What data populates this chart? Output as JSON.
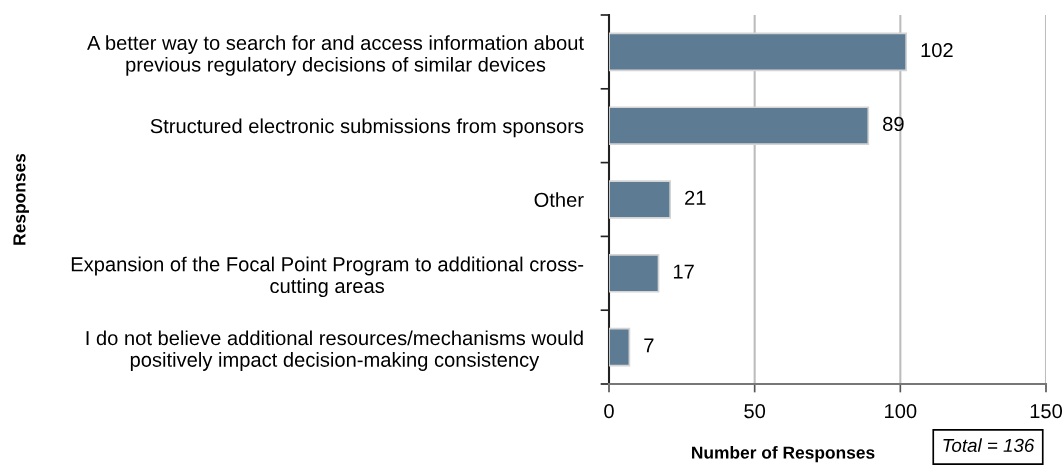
{
  "chart_data": {
    "type": "bar",
    "orientation": "horizontal",
    "xlabel": "Number of Responses",
    "ylabel": "Responses",
    "categories": [
      "A better way to search for and access information about\nprevious regulatory decisions of similar devices",
      "Structured electronic submissions from sponsors",
      "Other",
      "Expansion of the Focal Point Program to additional cross-\ncutting areas",
      "I do not believe additional resources/mechanisms would\npositively impact decision-making consistency"
    ],
    "values": [
      102,
      89,
      21,
      17,
      7
    ],
    "color": "#5d7b93",
    "xlim": [
      0,
      150
    ],
    "xticks": [
      0,
      50,
      100,
      150
    ],
    "grid": "x",
    "data_labels": true,
    "annotations": [
      "Total = 136"
    ]
  }
}
